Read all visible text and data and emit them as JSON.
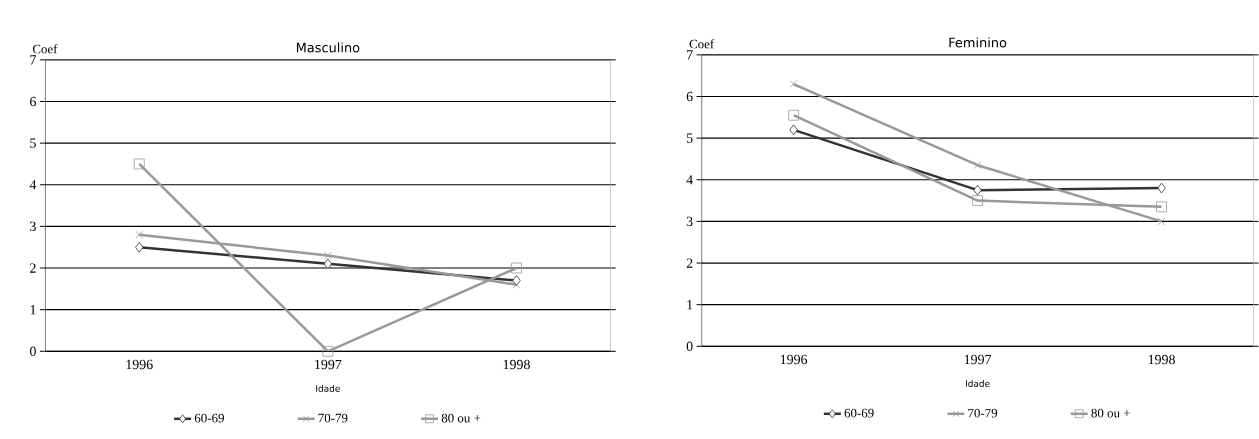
{
  "chart_data": [
    {
      "type": "line",
      "title": "Masculino",
      "xlabel": "Idade",
      "ylabel": "Coef",
      "categories": [
        "1996",
        "1997",
        "1998"
      ],
      "ylim": [
        0,
        7
      ],
      "yticks": [
        0,
        1,
        2,
        3,
        4,
        5,
        6,
        7
      ],
      "grid": "y",
      "legend": "bottom",
      "series": [
        {
          "name": "60-69",
          "color": "#333333",
          "marker": "diamond",
          "values": [
            2.5,
            2.1,
            1.7
          ]
        },
        {
          "name": "70-79",
          "color": "#999999",
          "marker": "cross",
          "values": [
            2.8,
            2.3,
            1.6
          ]
        },
        {
          "name": "80 ou +",
          "color": "#999999",
          "marker": "square",
          "values": [
            4.5,
            0,
            2.0
          ]
        }
      ]
    },
    {
      "type": "line",
      "title": "Feminino",
      "xlabel": "Idade",
      "ylabel": "Coef",
      "categories": [
        "1996",
        "1997",
        "1998"
      ],
      "ylim": [
        0,
        7
      ],
      "yticks": [
        0,
        1,
        2,
        3,
        4,
        5,
        6,
        7
      ],
      "grid": "y",
      "legend": "bottom",
      "series": [
        {
          "name": "60-69",
          "color": "#333333",
          "marker": "diamond",
          "values": [
            5.2,
            3.75,
            3.8
          ]
        },
        {
          "name": "70-79",
          "color": "#999999",
          "marker": "cross",
          "values": [
            6.3,
            4.35,
            3.0
          ]
        },
        {
          "name": "80 ou +",
          "color": "#999999",
          "marker": "square",
          "values": [
            5.55,
            3.5,
            3.35
          ]
        }
      ]
    }
  ]
}
